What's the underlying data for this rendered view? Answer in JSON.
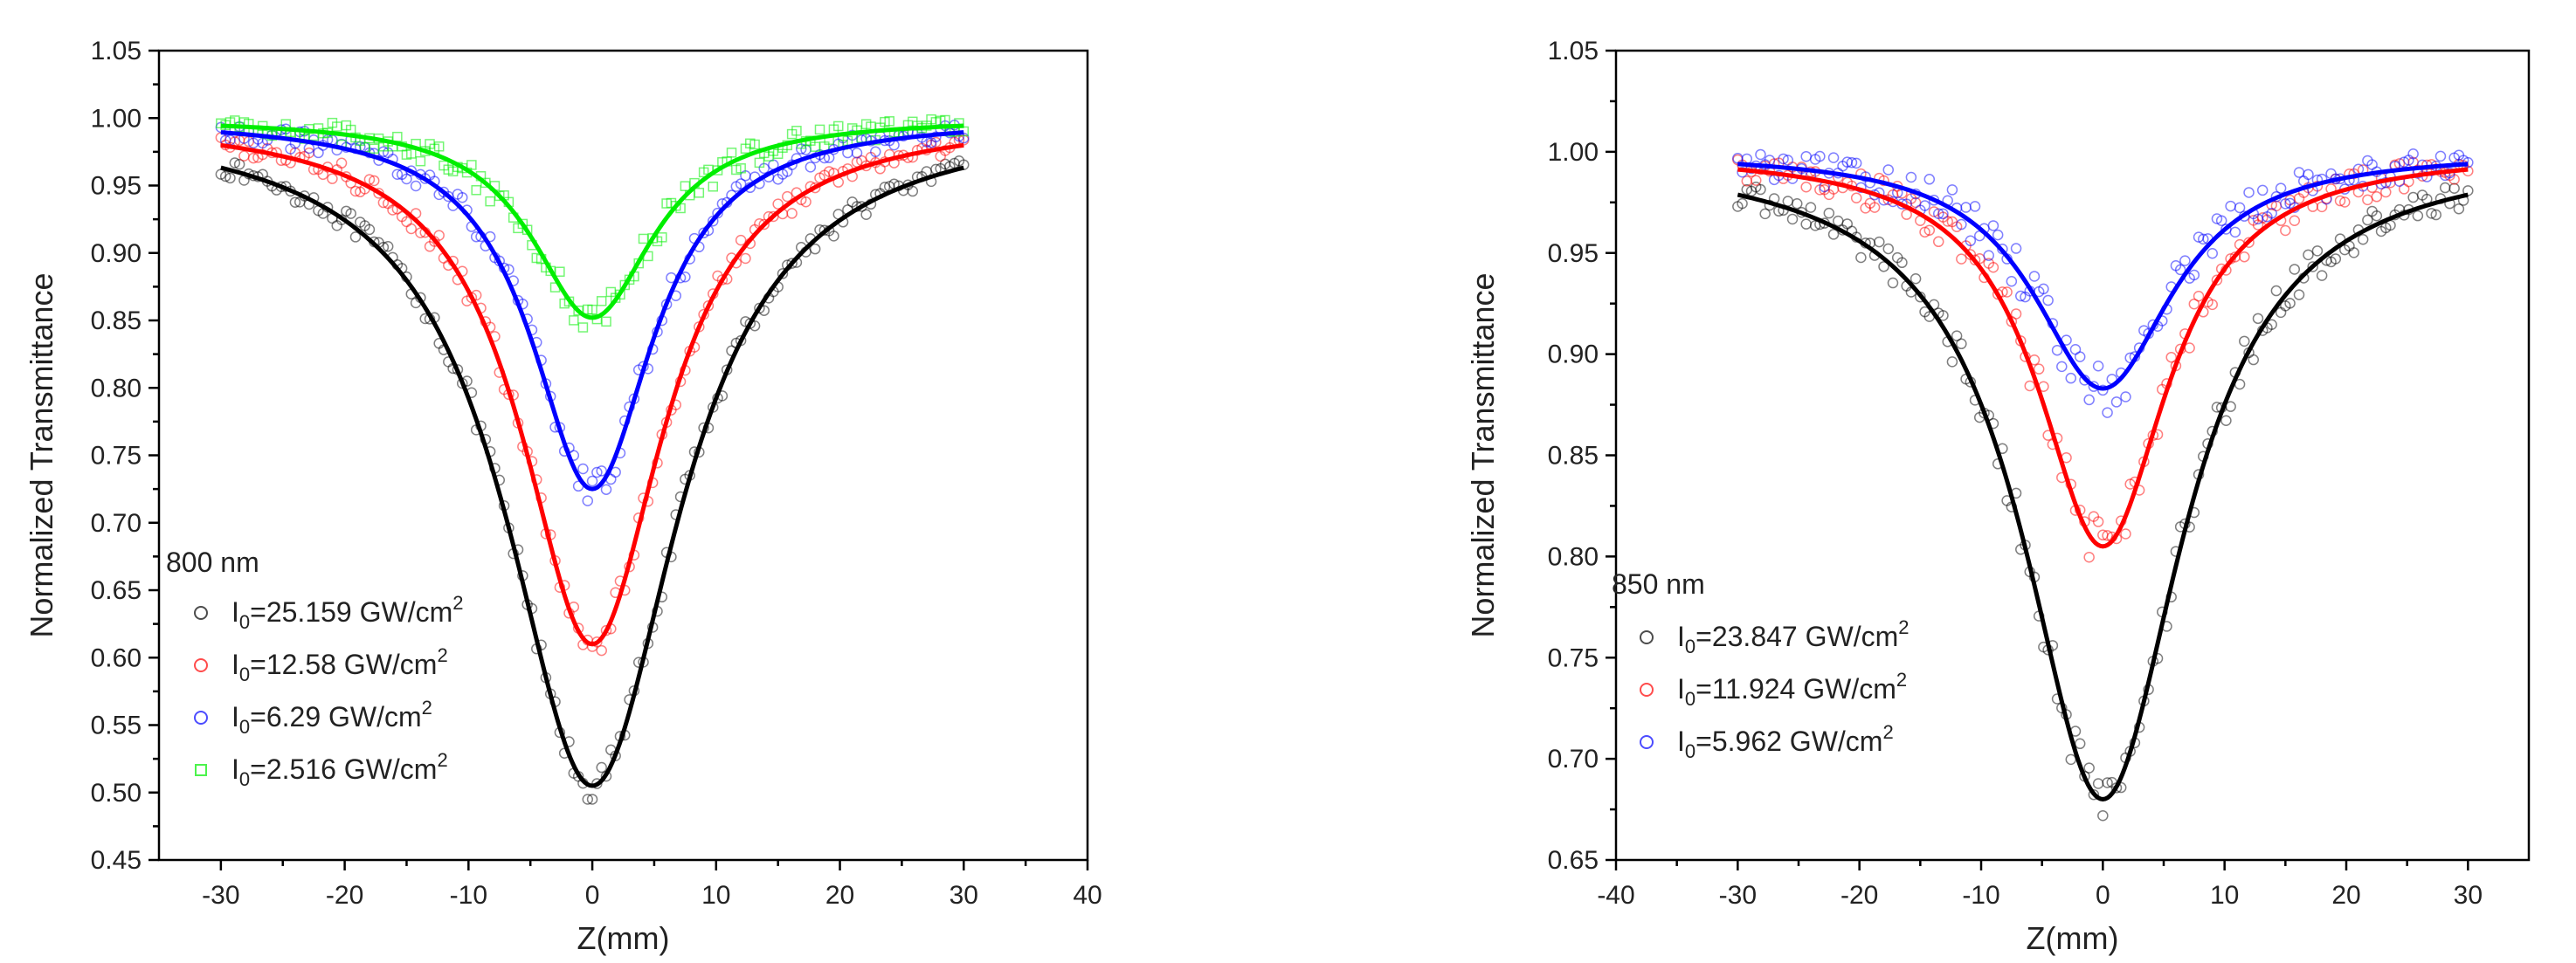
{
  "chart_data": [
    {
      "type": "scatter",
      "xlabel": "Z(mm)",
      "ylabel": "Normalized Transmittance",
      "xlim": [
        -35,
        40
      ],
      "ylim": [
        0.45,
        1.05
      ],
      "xticks": [
        -30,
        -20,
        -10,
        0,
        10,
        20,
        30,
        40
      ],
      "yticks": [
        0.45,
        0.5,
        0.55,
        0.6,
        0.65,
        0.7,
        0.75,
        0.8,
        0.85,
        0.9,
        0.95,
        1.0,
        1.05
      ],
      "legend_title": "800 nm",
      "legend_position": "bottom-left",
      "grid": false,
      "z_range": [
        -30,
        30
      ],
      "series": [
        {
          "name": "I0=25.159 GW/cm2",
          "label_main": "I",
          "label_sub": "0",
          "label_rest": "=25.159 GW/cm",
          "label_sup": "2",
          "color": "#000000",
          "marker": "open-circle",
          "min_transmittance": 0.505,
          "z0": 8.5
        },
        {
          "name": "I0=12.58 GW/cm2",
          "label_main": "I",
          "label_sub": "0",
          "label_rest": "=12.58 GW/cm",
          "label_sup": "2",
          "color": "#ff0000",
          "marker": "open-circle",
          "min_transmittance": 0.61,
          "z0": 7.0
        },
        {
          "name": "I0=6.29 GW/cm2",
          "label_main": "I",
          "label_sub": "0",
          "label_rest": "=6.29 GW/cm",
          "label_sup": "2",
          "color": "#0000ff",
          "marker": "open-circle",
          "min_transmittance": 0.725,
          "z0": 6.0
        },
        {
          "name": "I0=2.516 GW/cm2",
          "label_main": "I",
          "label_sub": "0",
          "label_rest": "=2.516 GW/cm",
          "label_sup": "2",
          "color": "#00ee00",
          "marker": "open-square",
          "min_transmittance": 0.852,
          "z0": 6.0
        }
      ]
    },
    {
      "type": "scatter",
      "xlabel": "Z(mm)",
      "ylabel": "Normalized Transmittance",
      "xlim": [
        -40,
        35
      ],
      "ylim": [
        0.65,
        1.05
      ],
      "xticks": [
        -40,
        -30,
        -20,
        -10,
        0,
        10,
        20,
        30
      ],
      "yticks": [
        0.65,
        0.7,
        0.75,
        0.8,
        0.85,
        0.9,
        0.95,
        1.0,
        1.05
      ],
      "legend_title": "850 nm",
      "legend_position": "bottom-left",
      "grid": false,
      "z_range": [
        -30,
        30
      ],
      "series": [
        {
          "name": "I0=23.847 GW/cm2",
          "label_main": "I",
          "label_sub": "0",
          "label_rest": "=23.847 GW/cm",
          "label_sup": "2",
          "color": "#000000",
          "marker": "open-circle",
          "min_transmittance": 0.68,
          "z0": 8.0
        },
        {
          "name": "I0=11.924 GW/cm2",
          "label_main": "I",
          "label_sub": "0",
          "label_rest": "=11.924 GW/cm",
          "label_sup": "2",
          "color": "#ff0000",
          "marker": "open-circle",
          "min_transmittance": 0.805,
          "z0": 6.5
        },
        {
          "name": "I0=5.962 GW/cm2",
          "label_main": "I",
          "label_sub": "0",
          "label_rest": "=5.962 GW/cm",
          "label_sup": "2",
          "color": "#0000ff",
          "marker": "open-circle",
          "min_transmittance": 0.883,
          "z0": 7.0
        }
      ]
    }
  ]
}
